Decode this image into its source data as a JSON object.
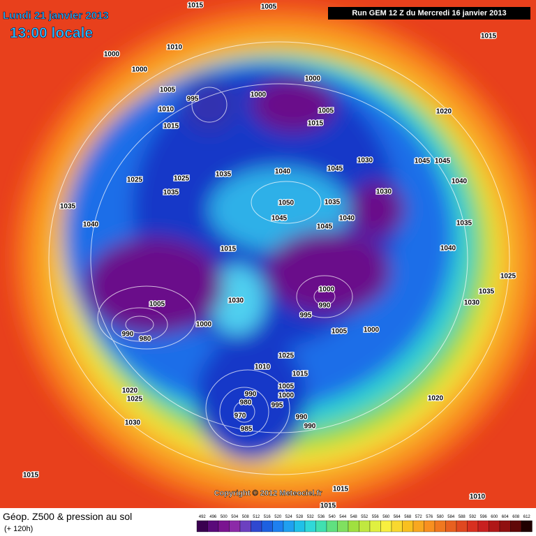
{
  "header": {
    "date": "Lundi 21 janvier 2013",
    "time": "13:00 locale",
    "run": "Run GEM 12 Z du Mercredi 16 janvier 2013"
  },
  "copyright": "Copyright © 2012 Meteociel.fr",
  "footer": {
    "title": "Géop. Z500 & pression au sol",
    "lead": "(+ 120h)"
  },
  "scale": [
    492,
    496,
    500,
    504,
    508,
    512,
    516,
    520,
    524,
    528,
    532,
    536,
    540,
    544,
    548,
    552,
    556,
    560,
    564,
    568,
    572,
    576,
    580,
    584,
    588,
    592,
    596,
    600,
    604,
    608,
    612
  ],
  "isobar_labels": [
    "1015",
    "1005",
    "1015",
    "1010",
    "1000",
    "1000",
    "1000",
    "995",
    "1000",
    "1005",
    "1020",
    "1015",
    "1010",
    "1005",
    "1015",
    "1030",
    "1035",
    "1040",
    "1045",
    "1045",
    "1045",
    "1025",
    "1025",
    "1035",
    "1050",
    "1035",
    "1045",
    "1040",
    "1045",
    "1030",
    "1035",
    "1040",
    "1015",
    "1000",
    "990",
    "995",
    "1005",
    "1000",
    "1005",
    "990",
    "980",
    "1000",
    "1030",
    "1025",
    "1010",
    "1015",
    "1005",
    "1000",
    "990",
    "980",
    "970",
    "985",
    "995",
    "990",
    "990",
    "1020",
    "1025",
    "1030",
    "1015",
    "1020",
    "1030",
    "1025",
    "1015",
    "1010",
    "1015",
    "1035",
    "1040",
    "1035",
    "1040"
  ]
}
